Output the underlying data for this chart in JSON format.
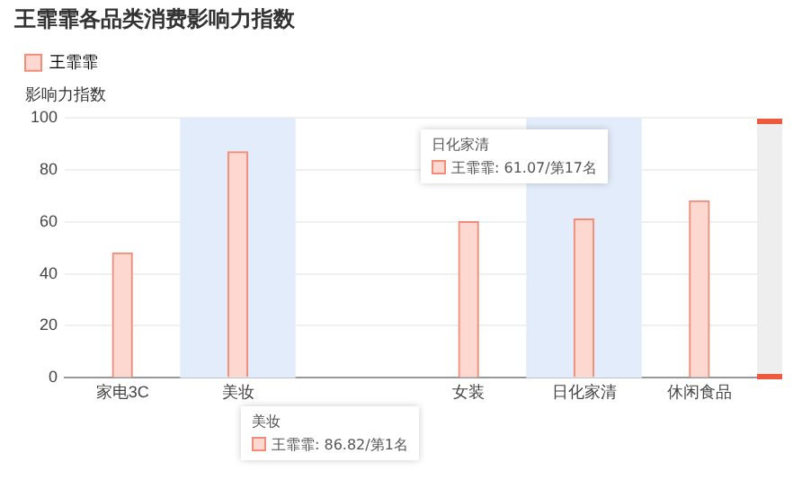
{
  "chart_data": {
    "type": "bar",
    "title": "王霏霏各品类消费影响力指数",
    "ylabel": "影响力指数",
    "categories": [
      "家电3C",
      "美妆",
      null,
      "女装",
      "日化家清",
      "休闲食品"
    ],
    "series": [
      {
        "name": "王霏霏",
        "color": "#fcd8d0",
        "values": [
          48,
          86.82,
          null,
          60,
          61.07,
          68
        ]
      }
    ],
    "ylim": [
      0,
      100
    ],
    "yticks": [
      0,
      20,
      40,
      60,
      80,
      100
    ],
    "grid": "y",
    "legend": "top left",
    "bands": [
      {
        "axis": "x",
        "from": "美妆",
        "to": "美妆",
        "color": "#e3ecfa"
      },
      {
        "axis": "x",
        "from": "日化家清",
        "to": "日化家清",
        "color": "#e3ecfa"
      }
    ],
    "annotations": [
      "日化家清",
      "王霏霏: 61.07/第17名",
      "美妆",
      "王霏霏: 86.82/第1名"
    ]
  }
}
